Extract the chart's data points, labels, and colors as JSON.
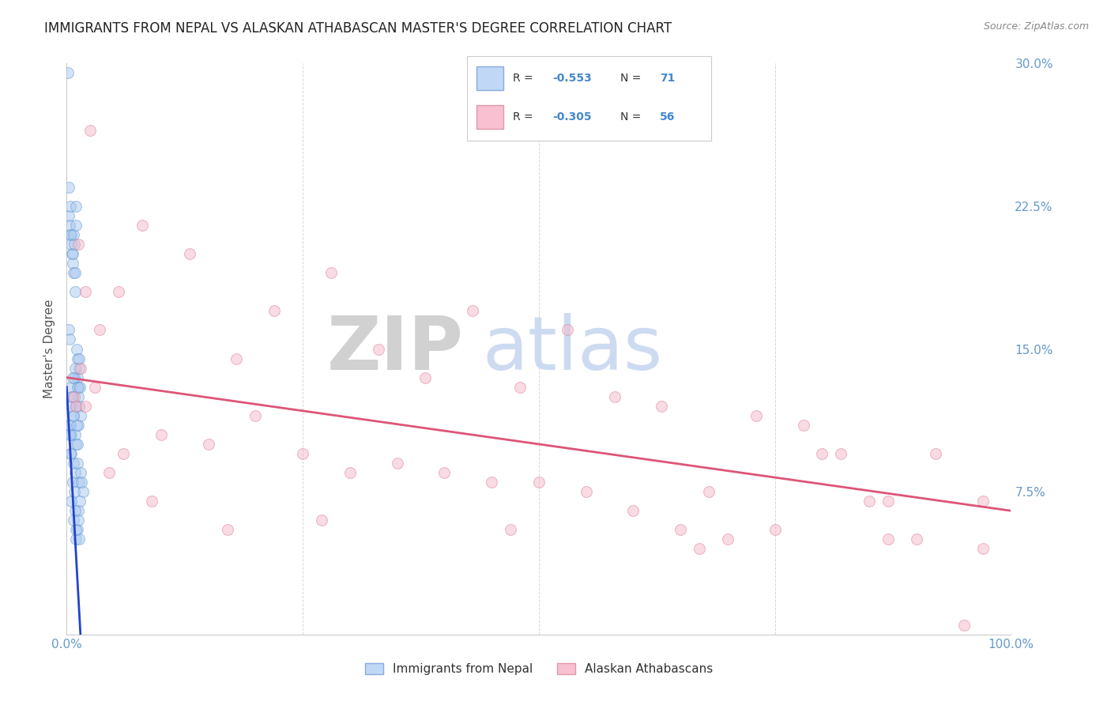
{
  "title": "IMMIGRANTS FROM NEPAL VS ALASKAN ATHABASCAN MASTER'S DEGREE CORRELATION CHART",
  "source": "Source: ZipAtlas.com",
  "ylabel": "Master's Degree",
  "x_min": 0.0,
  "x_max": 100.0,
  "y_min": 0.0,
  "y_max": 30.0,
  "y_ticks_right": [
    7.5,
    15.0,
    22.5,
    30.0
  ],
  "blue_scatter_x": [
    0.15,
    0.2,
    0.25,
    0.3,
    0.35,
    0.4,
    0.45,
    0.5,
    0.55,
    0.6,
    0.65,
    0.7,
    0.75,
    0.8,
    0.85,
    0.9,
    0.95,
    1.0,
    1.05,
    1.1,
    1.15,
    1.2,
    1.25,
    1.3,
    1.35,
    0.2,
    0.3,
    0.4,
    0.5,
    0.6,
    0.7,
    0.8,
    0.9,
    1.0,
    1.1,
    1.2,
    1.3,
    1.4,
    1.5,
    0.25,
    0.35,
    0.45,
    0.55,
    0.65,
    0.75,
    0.85,
    0.95,
    1.05,
    1.15,
    0.3,
    0.5,
    0.7,
    0.9,
    1.1,
    1.3,
    1.5,
    1.7,
    0.4,
    0.6,
    0.8,
    1.0,
    1.2,
    1.4,
    1.6,
    0.5,
    0.7,
    0.9,
    1.1,
    1.3,
    1.0,
    1.2
  ],
  "blue_scatter_y": [
    29.5,
    23.5,
    22.0,
    21.5,
    21.0,
    22.5,
    21.0,
    20.5,
    20.0,
    19.5,
    20.0,
    19.0,
    21.0,
    20.5,
    19.0,
    18.0,
    22.5,
    21.5,
    15.0,
    14.5,
    13.5,
    13.0,
    12.5,
    14.0,
    14.5,
    16.0,
    15.5,
    13.0,
    12.0,
    12.5,
    11.5,
    13.5,
    14.0,
    12.0,
    13.0,
    11.0,
    12.0,
    13.0,
    11.5,
    11.0,
    11.0,
    10.5,
    12.5,
    13.5,
    11.5,
    10.5,
    10.0,
    11.0,
    10.0,
    10.5,
    9.5,
    9.0,
    8.5,
    9.0,
    8.0,
    8.5,
    7.5,
    9.5,
    8.0,
    7.5,
    5.0,
    6.5,
    7.0,
    8.0,
    7.0,
    6.0,
    6.5,
    5.5,
    5.0,
    5.5,
    6.0
  ],
  "pink_scatter_x": [
    1.2,
    2.5,
    0.8,
    1.5,
    2.0,
    3.5,
    5.5,
    8.0,
    13.0,
    18.0,
    22.0,
    28.0,
    33.0,
    38.0,
    43.0,
    48.0,
    53.0,
    58.0,
    63.0,
    68.0,
    73.0,
    78.0,
    82.0,
    87.0,
    92.0,
    97.0,
    1.0,
    3.0,
    6.0,
    10.0,
    15.0,
    20.0,
    25.0,
    30.0,
    35.0,
    40.0,
    45.0,
    50.0,
    55.0,
    60.0,
    65.0,
    70.0,
    75.0,
    80.0,
    85.0,
    90.0,
    95.0,
    2.0,
    4.5,
    9.0,
    17.0,
    27.0,
    47.0,
    67.0,
    87.0,
    97.0
  ],
  "pink_scatter_y": [
    20.5,
    26.5,
    12.5,
    14.0,
    18.0,
    16.0,
    18.0,
    21.5,
    20.0,
    14.5,
    17.0,
    19.0,
    15.0,
    13.5,
    17.0,
    13.0,
    16.0,
    12.5,
    12.0,
    7.5,
    11.5,
    11.0,
    9.5,
    7.0,
    9.5,
    7.0,
    12.0,
    13.0,
    9.5,
    10.5,
    10.0,
    11.5,
    9.5,
    8.5,
    9.0,
    8.5,
    8.0,
    8.0,
    7.5,
    6.5,
    5.5,
    5.0,
    5.5,
    9.5,
    7.0,
    5.0,
    0.5,
    12.0,
    8.5,
    7.0,
    5.5,
    6.0,
    5.5,
    4.5,
    5.0,
    4.5
  ],
  "blue_line_x": [
    0.0,
    1.8
  ],
  "blue_line_y": [
    13.0,
    -3.0
  ],
  "pink_line_x": [
    0.0,
    100.0
  ],
  "pink_line_y": [
    13.5,
    6.5
  ],
  "watermark_zip": "ZIP",
  "watermark_atlas": "atlas",
  "watermark_zip_color": "#cccccc",
  "watermark_atlas_color": "#c8d8f0",
  "scatter_size": 100,
  "scatter_alpha": 0.5,
  "blue_color": "#a8c8f0",
  "blue_edge_color": "#6699cc",
  "pink_color": "#f5b8c8",
  "pink_edge_color": "#e080a0",
  "blue_line_color": "#2244cc",
  "pink_line_color": "#dd5577",
  "grid_color": "#cccccc",
  "background_color": "#ffffff",
  "title_fontsize": 12,
  "source_color": "#888888",
  "tick_label_color": "#6699cc",
  "ylabel_color": "#555555",
  "legend_r_label_color": "#333333",
  "legend_value_color": "#4488cc",
  "legend_n_label_color": "#333333"
}
